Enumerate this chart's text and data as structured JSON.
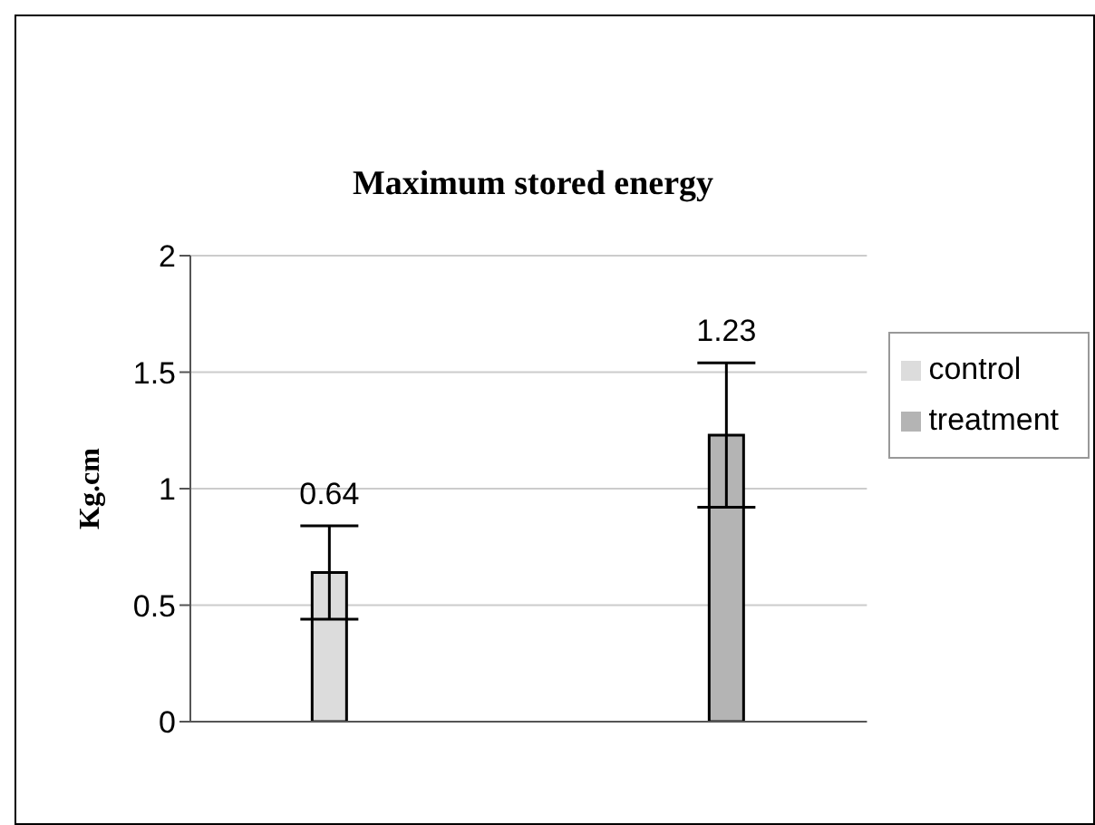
{
  "chart_data": {
    "type": "bar",
    "title": "Maximum stored energy",
    "ylabel": "Kg.cm",
    "categories": [
      null
    ],
    "series": [
      {
        "name": "control",
        "color": "#dcdcdc",
        "values": [
          0.64
        ],
        "errors": [
          0.2
        ]
      },
      {
        "name": "treatment",
        "color": "#b4b4b4",
        "values": [
          1.23
        ],
        "errors": [
          0.31
        ]
      }
    ],
    "ylim": [
      0,
      2
    ],
    "yticks": [
      0,
      0.5,
      1,
      1.5,
      2
    ],
    "grid": "y",
    "legend": "right",
    "data_labels": true
  }
}
